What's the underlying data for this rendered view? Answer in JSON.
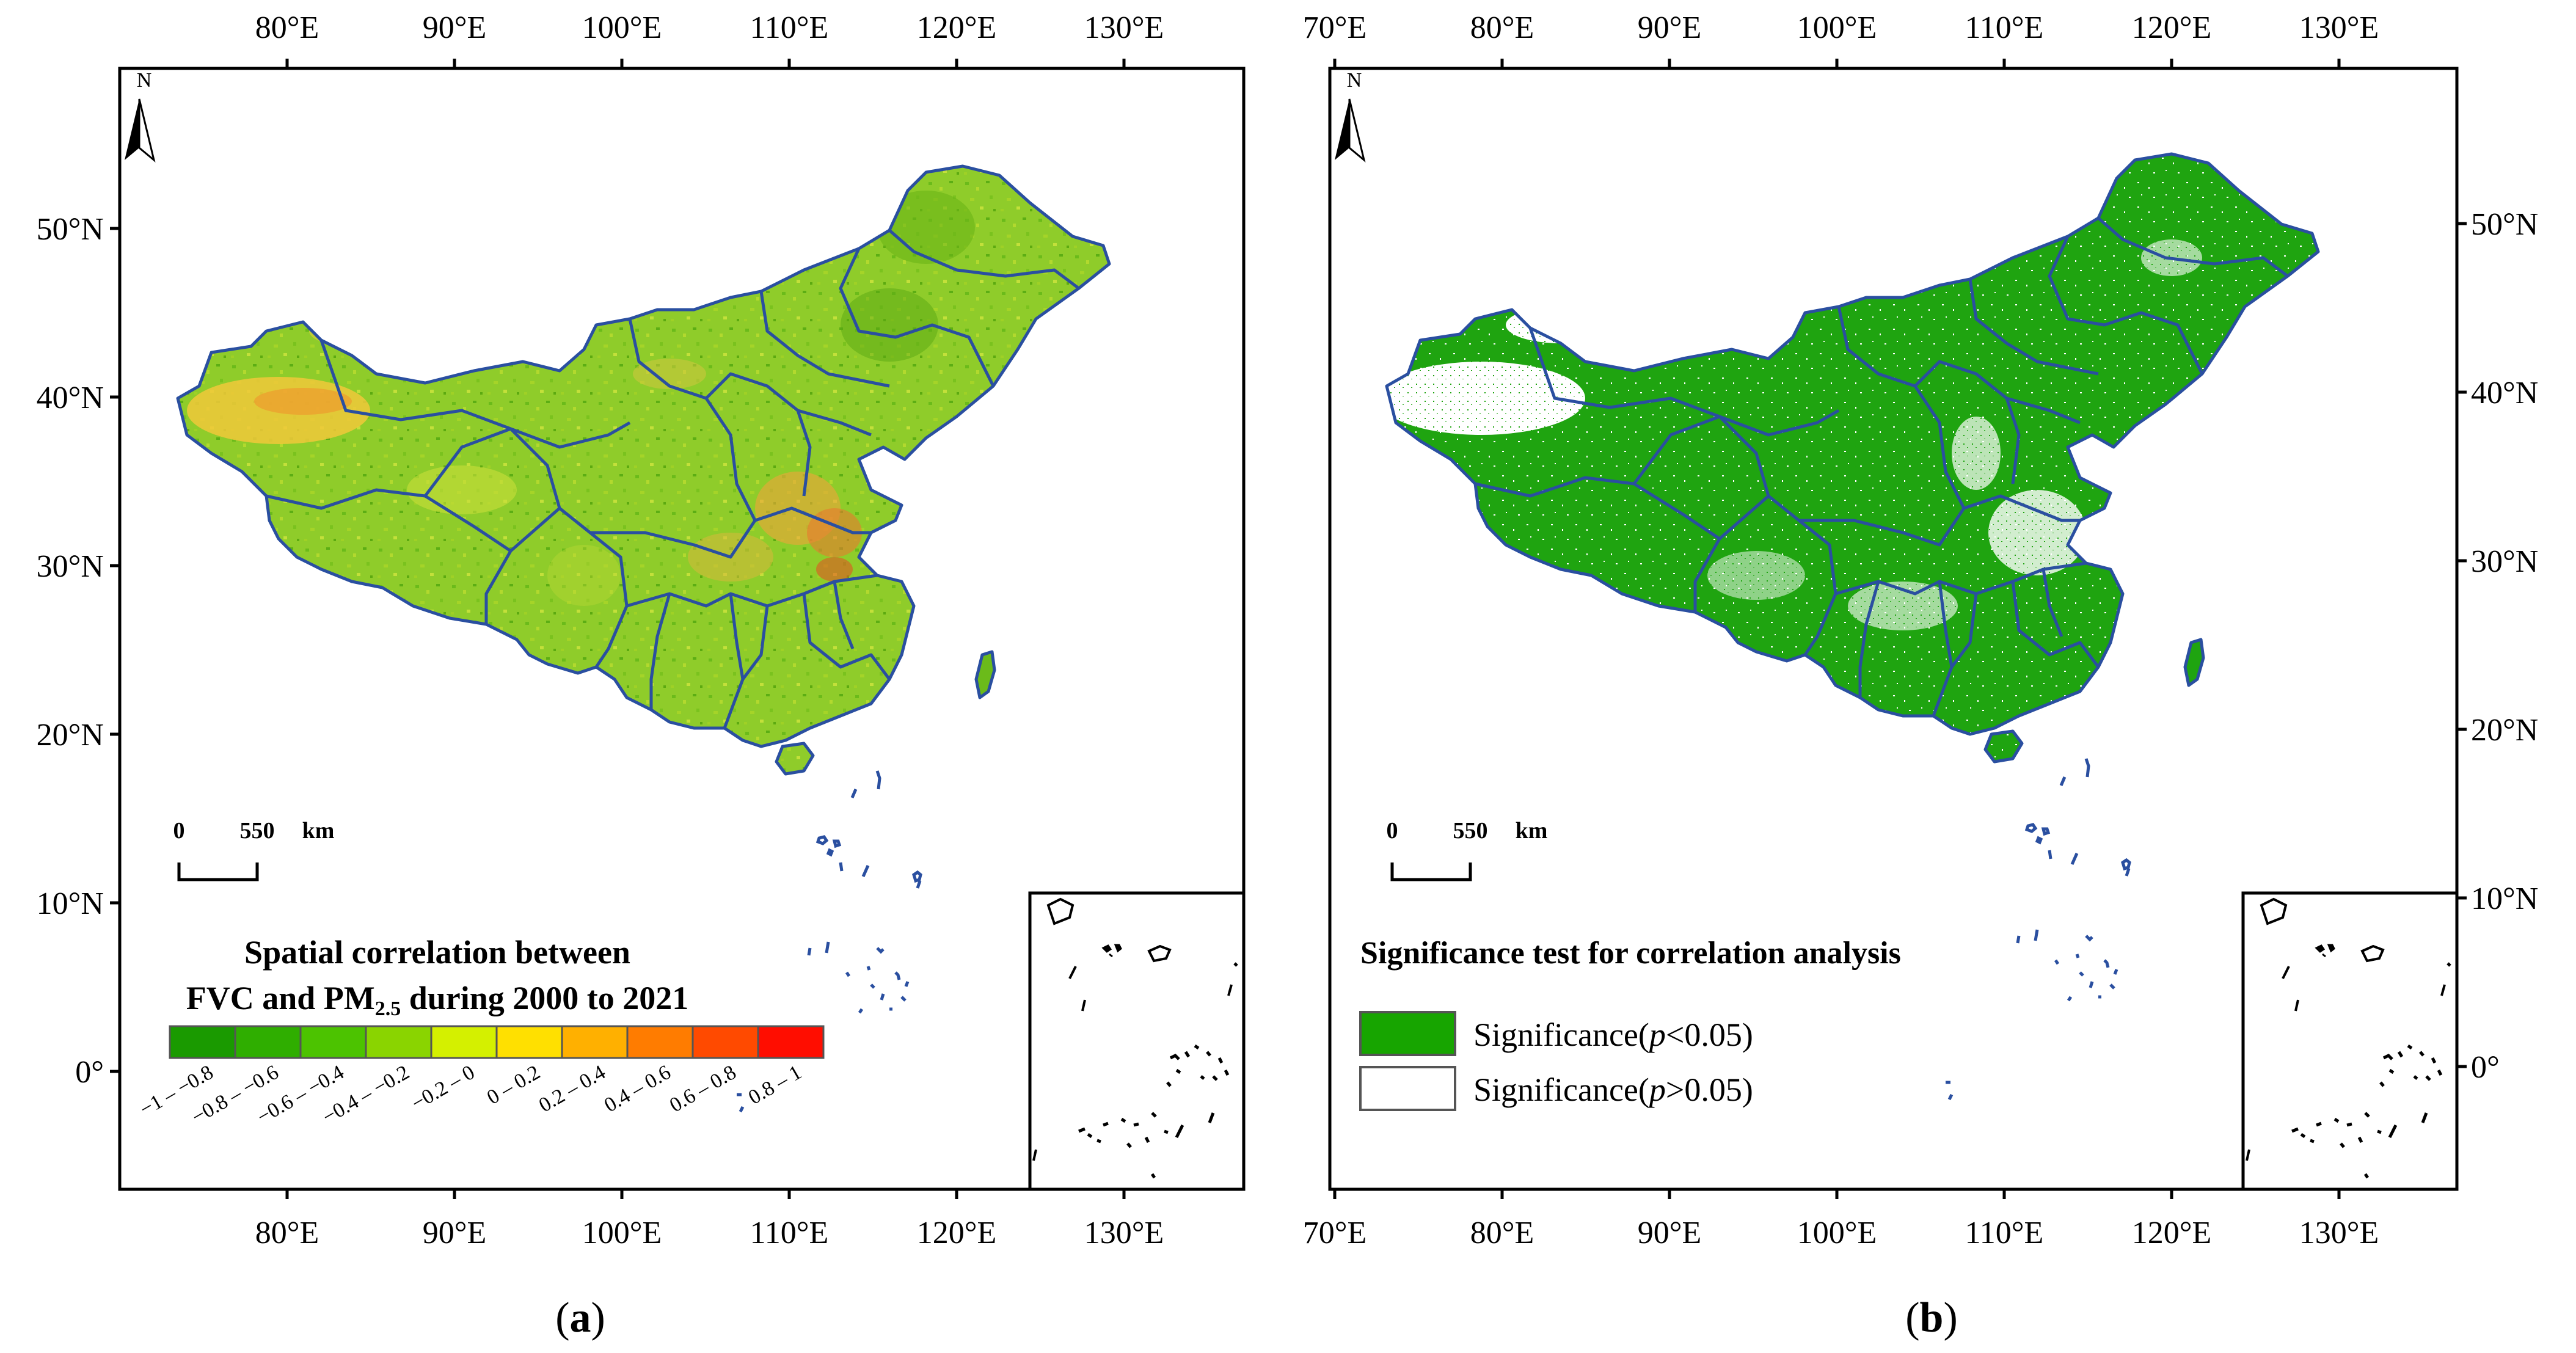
{
  "panels": [
    {
      "id": "a",
      "caption": "(a)",
      "caption_letter": "a",
      "top_lon_labels": [
        "80°E",
        "90°E",
        "100°E",
        "110°E",
        "120°E",
        "130°E"
      ],
      "bottom_lon_labels": [
        "80°E",
        "90°E",
        "100°E",
        "110°E",
        "120°E",
        "130°E"
      ],
      "lat_labels": [
        "50°N",
        "40°N",
        "30°N",
        "20°N",
        "10°N",
        "0°"
      ],
      "north_label": "N",
      "scale_zero": "0",
      "scale_value": "550",
      "scale_unit": "km",
      "legend_title_line1": "Spatial correlation between",
      "legend_title_line2_pre": "FVC and PM",
      "legend_title_line2_sub": "2.5",
      "legend_title_line2_post": " during 2000 to 2021",
      "legend_classes": [
        {
          "label": "−1 – −0.8",
          "color": "#1a9a00"
        },
        {
          "label": "−0.8 – −0.6",
          "color": "#2fae00"
        },
        {
          "label": "−0.6 – −0.4",
          "color": "#4cc300"
        },
        {
          "label": "−0.4 – −0.2",
          "color": "#8ad400"
        },
        {
          "label": "−0.2 – 0",
          "color": "#d4f000"
        },
        {
          "label": "0 – 0.2",
          "color": "#ffe000"
        },
        {
          "label": "0.2 – 0.4",
          "color": "#ffb000"
        },
        {
          "label": "0.4 – 0.6",
          "color": "#ff7c00"
        },
        {
          "label": "0.6 – 0.8",
          "color": "#ff4a00"
        },
        {
          "label": "0.8 – 1",
          "color": "#ff0d00"
        }
      ]
    },
    {
      "id": "b",
      "caption": "(b)",
      "caption_letter": "b",
      "top_lon_labels": [
        "70°E",
        "80°E",
        "90°E",
        "100°E",
        "110°E",
        "120°E",
        "130°E"
      ],
      "bottom_lon_labels": [
        "70°E",
        "80°E",
        "90°E",
        "100°E",
        "110°E",
        "120°E",
        "130°E"
      ],
      "lat_labels": [
        "50°N",
        "40°N",
        "30°N",
        "20°N",
        "10°N",
        "0°"
      ],
      "north_label": "N",
      "scale_zero": "0",
      "scale_value": "550",
      "scale_unit": "km",
      "legend_title": "Significance test for correlation analysis",
      "legend_items": [
        {
          "pre": "Significance(",
          "p": "p",
          "post": "<0.05)",
          "color": "#17a500"
        },
        {
          "pre": "Significance(",
          "p": "p",
          "post": ">0.05)",
          "color": "#ffffff"
        }
      ]
    }
  ],
  "colors": {
    "boundary": "#2a4fa0",
    "frame": "#000000",
    "land_a_base": "#8fcc2a",
    "land_b_base": "#1fa410"
  }
}
